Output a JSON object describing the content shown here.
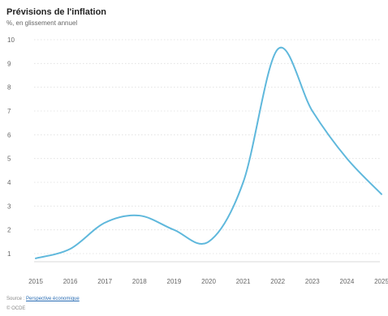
{
  "chart_data": {
    "type": "line",
    "title": "Prévisions de l'inflation",
    "subtitle": "%, en glissement annuel",
    "x": [
      2015,
      2016,
      2017,
      2018,
      2019,
      2020,
      2021,
      2022,
      2023,
      2024,
      2025
    ],
    "x_tick_labels": [
      "2015",
      "2016",
      "2017",
      "2018",
      "2019",
      "2020",
      "2021",
      "2022",
      "2023",
      "2024",
      "2025"
    ],
    "y_ticks": [
      1,
      2,
      3,
      4,
      5,
      6,
      7,
      8,
      9,
      10
    ],
    "ylim": [
      0.5,
      10
    ],
    "xlim": [
      2015,
      2025
    ],
    "grid": true,
    "series": [
      {
        "color": "#5fb8dc",
        "values": [
          0.8,
          1.2,
          2.3,
          2.6,
          2.0,
          1.5,
          4.0,
          9.6,
          7.0,
          5.0,
          3.5
        ]
      }
    ]
  },
  "source": {
    "prefix": "Source : ",
    "link": "Perspective économique"
  },
  "credit": "© OCDE"
}
